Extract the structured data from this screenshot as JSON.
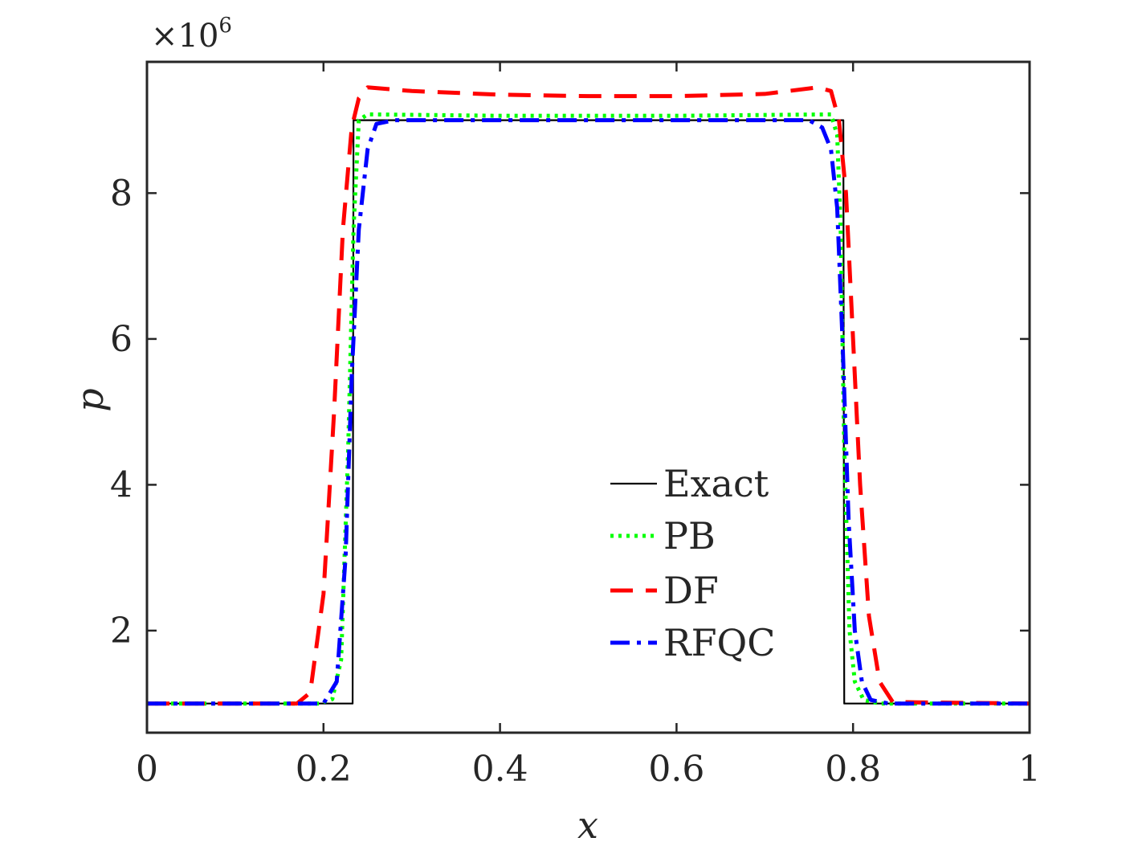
{
  "chart_data": {
    "type": "line",
    "title": "",
    "xlabel": "x",
    "ylabel": "p",
    "xlim": [
      0,
      1
    ],
    "ylim": [
      0.6,
      9.8
    ],
    "y_scale_label": "×10",
    "y_scale_exponent": "6",
    "xticks": [
      0,
      0.2,
      0.4,
      0.6,
      0.8,
      1
    ],
    "xtick_labels": [
      "0",
      "0.2",
      "0.4",
      "0.6",
      "0.8",
      "1"
    ],
    "yticks": [
      2,
      4,
      6,
      8
    ],
    "ytick_labels": [
      "2",
      "4",
      "6",
      "8"
    ],
    "legend_position": "lower-center-right",
    "series": [
      {
        "name": "Exact",
        "color": "#000000",
        "style": "solid",
        "x": [
          0,
          0.233,
          0.234,
          0.789,
          0.79,
          1
        ],
        "y": [
          1.0,
          1.0,
          9.0,
          9.0,
          1.0,
          1.0
        ]
      },
      {
        "name": "PB",
        "color": "#00ff00",
        "style": "dotted",
        "x": [
          0,
          0.195,
          0.21,
          0.22,
          0.228,
          0.234,
          0.24,
          0.25,
          0.4,
          0.6,
          0.775,
          0.782,
          0.786,
          0.79,
          0.796,
          0.802,
          0.812,
          0.83,
          1
        ],
        "y": [
          1.0,
          1.0,
          1.06,
          1.6,
          4.5,
          7.5,
          9.0,
          9.08,
          9.06,
          9.06,
          9.08,
          8.8,
          7.5,
          4.5,
          2.0,
          1.3,
          1.05,
          1.0,
          1.0
        ]
      },
      {
        "name": "DF",
        "color": "#ff0000",
        "style": "dashed",
        "x": [
          0,
          0.17,
          0.185,
          0.2,
          0.212,
          0.222,
          0.232,
          0.24,
          0.25,
          0.3,
          0.4,
          0.5,
          0.6,
          0.7,
          0.76,
          0.775,
          0.784,
          0.792,
          0.8,
          0.808,
          0.818,
          0.83,
          0.845,
          1
        ],
        "y": [
          1.0,
          1.0,
          1.15,
          2.5,
          5.0,
          7.5,
          8.9,
          9.3,
          9.45,
          9.4,
          9.35,
          9.33,
          9.33,
          9.36,
          9.45,
          9.4,
          9.0,
          8.0,
          6.0,
          4.0,
          2.2,
          1.3,
          1.02,
          1.0
        ]
      },
      {
        "name": "RFQC",
        "color": "#0000ff",
        "style": "dashdot",
        "x": [
          0,
          0.2,
          0.215,
          0.225,
          0.232,
          0.24,
          0.25,
          0.26,
          0.28,
          0.4,
          0.6,
          0.75,
          0.765,
          0.775,
          0.782,
          0.788,
          0.795,
          0.802,
          0.81,
          0.82,
          0.84,
          1
        ],
        "y": [
          1.0,
          1.0,
          1.3,
          3.0,
          5.5,
          7.5,
          8.6,
          8.95,
          9.0,
          9.0,
          9.0,
          9.0,
          8.9,
          8.6,
          7.8,
          6.0,
          3.5,
          2.0,
          1.3,
          1.05,
          1.0,
          1.0
        ]
      }
    ]
  }
}
